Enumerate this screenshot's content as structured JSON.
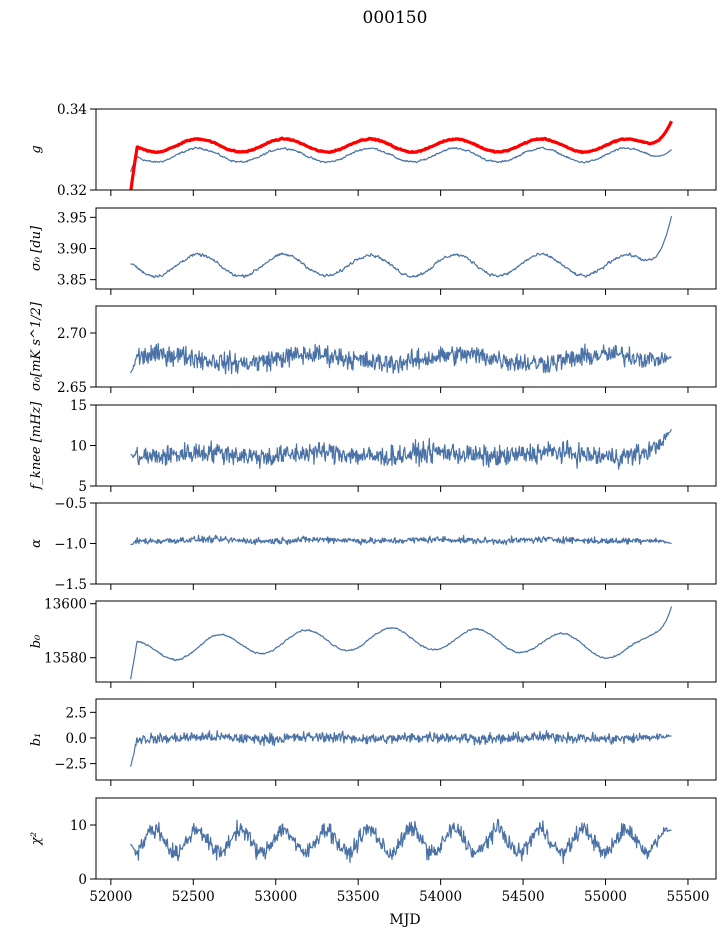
{
  "figure": {
    "title": "000150",
    "xlabel": "MJD",
    "colors": {
      "series": "#4a72a6",
      "overlay": "#ff0000",
      "axes": "#000000"
    }
  },
  "chart_data": [
    {
      "type": "line",
      "ylabel": "g",
      "ylim": [
        0.32,
        0.34
      ],
      "yticks": [
        0.32,
        0.34
      ],
      "ytick_labels": [
        "0.32",
        "0.34"
      ],
      "series": [
        {
          "color": "#4a72a6",
          "base": 0.3286,
          "amp": 0.0017,
          "period": 520,
          "phase": 52400,
          "noise": 0.0004,
          "start": 0.3245,
          "edge": 0.33
        },
        {
          "color": "#ff0000",
          "base": 0.331,
          "amp": 0.0016,
          "period": 520,
          "phase": 52400,
          "noise": 0.00025,
          "thick": true,
          "start": 0.3195,
          "edge": 0.337
        }
      ]
    },
    {
      "type": "line",
      "ylabel": "σ₀ [du]",
      "ylim": [
        3.835,
        3.965
      ],
      "yticks": [
        3.85,
        3.9,
        3.95
      ],
      "ytick_labels": [
        "3.85",
        "3.90",
        "3.95"
      ],
      "series": [
        {
          "color": "#4a72a6",
          "base": 3.873,
          "amp": 0.017,
          "period": 520,
          "phase": 52400,
          "noise": 0.004,
          "start": 3.875,
          "edge": 3.952
        }
      ]
    },
    {
      "type": "line",
      "ylabel": "σ₀[mK s^1/2]",
      "ylim": [
        2.65,
        2.725
      ],
      "yticks": [
        2.65,
        2.7
      ],
      "ytick_labels": [
        "2.65",
        "2.70"
      ],
      "series": [
        {
          "color": "#4a72a6",
          "base": 2.676,
          "amp": 0.004,
          "period": 900,
          "phase": 53000,
          "noise": 0.008,
          "start": 2.663,
          "edge": 2.678
        }
      ]
    },
    {
      "type": "line",
      "ylabel": "f_knee [mHz]",
      "ylim": [
        5,
        15
      ],
      "yticks": [
        5,
        10,
        15
      ],
      "ytick_labels": [
        "5",
        "10",
        "15"
      ],
      "series": [
        {
          "color": "#4a72a6",
          "base": 8.9,
          "amp": 0.3,
          "period": 700,
          "phase": 52400,
          "noise": 1.1,
          "start": 8.8,
          "edge": 12.0
        }
      ]
    },
    {
      "type": "line",
      "ylabel": "α",
      "ylim": [
        -1.5,
        -0.5
      ],
      "yticks": [
        -1.5,
        -1.0,
        -0.5
      ],
      "ytick_labels": [
        "−1.5",
        "−1.0",
        "−0.5"
      ],
      "series": [
        {
          "color": "#4a72a6",
          "base": -0.96,
          "amp": 0.01,
          "period": 700,
          "phase": 52400,
          "noise": 0.035,
          "start": -1.02,
          "edge": -1.0
        }
      ]
    },
    {
      "type": "line",
      "ylabel": "b₀",
      "ylim": [
        13571,
        13601
      ],
      "yticks": [
        13580,
        13600
      ],
      "ytick_labels": [
        "13580",
        "13600"
      ],
      "series": [
        {
          "color": "#4a72a6",
          "base": 13582,
          "amp": 4.0,
          "period": 520,
          "phase": 52530,
          "noise": 0.5,
          "trend": 5.0,
          "start": 13572,
          "edge": 13599
        }
      ]
    },
    {
      "type": "line",
      "ylabel": "b₁",
      "ylim": [
        -4.1,
        3.8
      ],
      "yticks": [
        -2.5,
        0.0,
        2.5
      ],
      "ytick_labels": [
        "−2.5",
        "0.0",
        "2.5"
      ],
      "series": [
        {
          "color": "#4a72a6",
          "base": 0.0,
          "amp": 0.1,
          "period": 700,
          "phase": 52400,
          "noise": 0.45,
          "start": -2.8,
          "edge": 0.2
        }
      ]
    },
    {
      "type": "line",
      "ylabel": "χ²",
      "ylim": [
        0,
        15
      ],
      "yticks": [
        0,
        10
      ],
      "ytick_labels": [
        "0",
        "10"
      ],
      "series": [
        {
          "color": "#4a72a6",
          "base": 7.0,
          "amp": 2.2,
          "period": 260,
          "phase": 52200,
          "noise": 1.3,
          "start": 6.5,
          "edge": 9.0
        }
      ]
    }
  ],
  "xaxis": {
    "xlim": [
      51910,
      55670
    ],
    "data_range": [
      52120,
      55400
    ],
    "xticks": [
      52000,
      52500,
      53000,
      53500,
      54000,
      54500,
      55000,
      55500
    ],
    "xtick_labels": [
      "52000",
      "52500",
      "53000",
      "53500",
      "54000",
      "54500",
      "55000",
      "55500"
    ]
  }
}
